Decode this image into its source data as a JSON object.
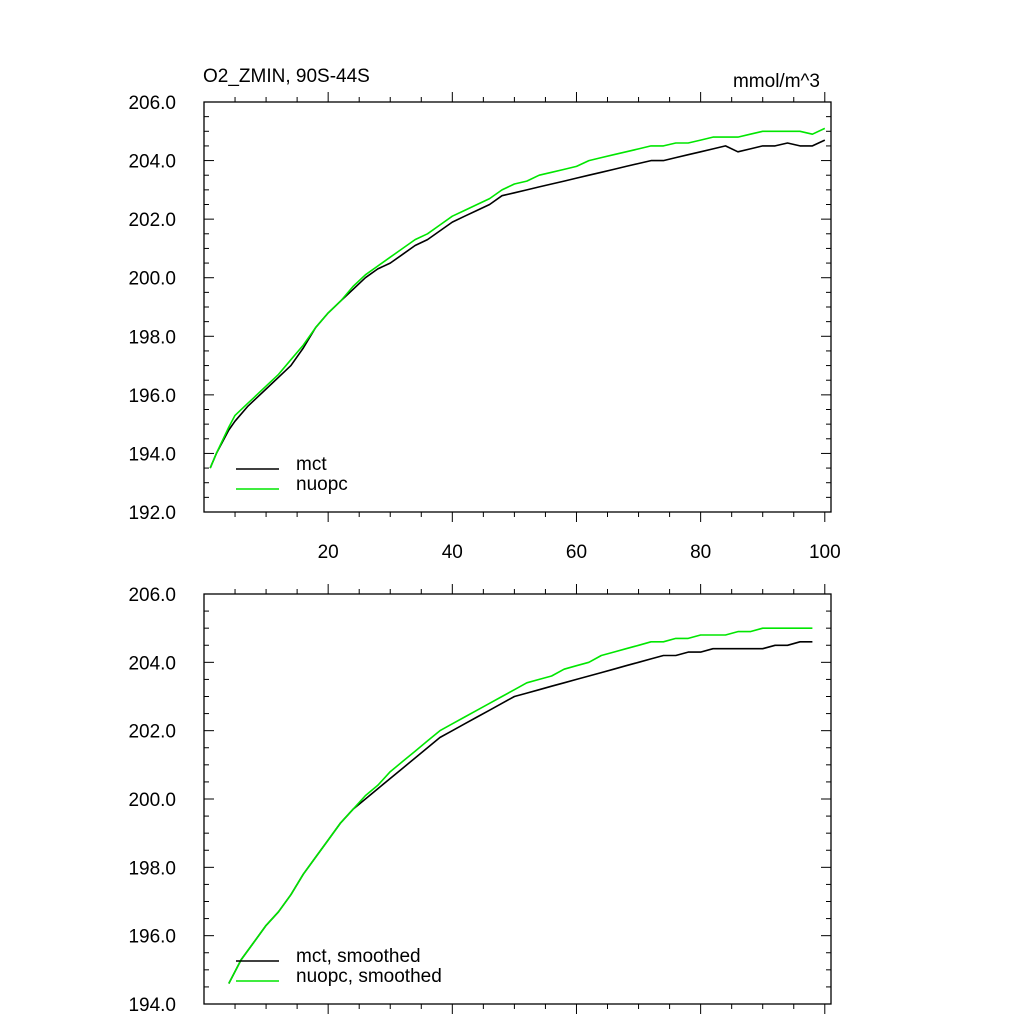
{
  "chart_data": [
    {
      "type": "line",
      "title": "O2_ZMIN, 90S-44S",
      "units": "mmol/m^3",
      "xlim": [
        0,
        101
      ],
      "ylim": [
        192,
        206
      ],
      "x_ticks": [
        20,
        40,
        60,
        80,
        100
      ],
      "y_ticks": [
        192.0,
        194.0,
        196.0,
        198.0,
        200.0,
        202.0,
        204.0,
        206.0
      ],
      "y_tick_labels": [
        "192.0",
        "194.0",
        "196.0",
        "198.0",
        "200.0",
        "202.0",
        "204.0",
        "206.0"
      ],
      "x_tick_labels": [
        "20",
        "40",
        "60",
        "80",
        "100"
      ],
      "legend_position": "bottom-left",
      "series": [
        {
          "name": "mct",
          "color": "#000000",
          "x": [
            1,
            2,
            4,
            5,
            7,
            8,
            10,
            12,
            14,
            16,
            18,
            20,
            22,
            24,
            26,
            28,
            30,
            32,
            34,
            36,
            38,
            40,
            42,
            44,
            46,
            48,
            50,
            52,
            54,
            56,
            58,
            60,
            62,
            64,
            66,
            68,
            70,
            72,
            74,
            76,
            78,
            80,
            82,
            84,
            86,
            88,
            90,
            92,
            94,
            96,
            98,
            100
          ],
          "y": [
            193.5,
            194.0,
            194.8,
            195.1,
            195.6,
            195.8,
            196.2,
            196.6,
            197.0,
            197.6,
            198.3,
            198.8,
            199.2,
            199.6,
            200.0,
            200.3,
            200.5,
            200.8,
            201.1,
            201.3,
            201.6,
            201.9,
            202.1,
            202.3,
            202.5,
            202.8,
            202.9,
            203.0,
            203.1,
            203.2,
            203.3,
            203.4,
            203.5,
            203.6,
            203.7,
            203.8,
            203.9,
            204.0,
            204.0,
            204.1,
            204.2,
            204.3,
            204.4,
            204.5,
            204.3,
            204.4,
            204.5,
            204.5,
            204.6,
            204.5,
            204.5,
            204.7
          ]
        },
        {
          "name": "nuopc",
          "color": "#00e600",
          "x": [
            1,
            2,
            4,
            5,
            7,
            8,
            10,
            12,
            14,
            16,
            18,
            20,
            22,
            24,
            26,
            28,
            30,
            32,
            34,
            36,
            38,
            40,
            42,
            44,
            46,
            48,
            50,
            52,
            54,
            56,
            58,
            60,
            62,
            64,
            66,
            68,
            70,
            72,
            74,
            76,
            78,
            80,
            82,
            84,
            86,
            88,
            90,
            92,
            94,
            96,
            98,
            100
          ],
          "y": [
            193.5,
            194.0,
            194.9,
            195.3,
            195.7,
            195.9,
            196.3,
            196.7,
            197.2,
            197.7,
            198.3,
            198.8,
            199.2,
            199.7,
            200.1,
            200.4,
            200.7,
            201.0,
            201.3,
            201.5,
            201.8,
            202.1,
            202.3,
            202.5,
            202.7,
            203.0,
            203.2,
            203.3,
            203.5,
            203.6,
            203.7,
            203.8,
            204.0,
            204.1,
            204.2,
            204.3,
            204.4,
            204.5,
            204.5,
            204.6,
            204.6,
            204.7,
            204.8,
            204.8,
            204.8,
            204.9,
            205.0,
            205.0,
            205.0,
            205.0,
            204.9,
            205.1
          ]
        }
      ]
    },
    {
      "type": "line",
      "xlim": [
        0,
        101
      ],
      "ylim": [
        194,
        206
      ],
      "x_ticks": [
        20,
        40,
        60,
        80,
        100
      ],
      "y_ticks": [
        194.0,
        196.0,
        198.0,
        200.0,
        202.0,
        204.0,
        206.0
      ],
      "y_tick_labels": [
        "194.0",
        "196.0",
        "198.0",
        "200.0",
        "202.0",
        "204.0",
        "206.0"
      ],
      "legend_position": "bottom-left",
      "series": [
        {
          "name": "mct, smoothed",
          "color": "#000000",
          "x": [
            4,
            6,
            8,
            10,
            12,
            14,
            16,
            18,
            20,
            22,
            24,
            26,
            28,
            30,
            32,
            34,
            36,
            38,
            40,
            42,
            44,
            46,
            48,
            50,
            52,
            54,
            56,
            58,
            60,
            62,
            64,
            66,
            68,
            70,
            72,
            74,
            76,
            78,
            80,
            82,
            84,
            86,
            88,
            90,
            92,
            94,
            96,
            98
          ],
          "y": [
            194.6,
            195.3,
            195.8,
            196.3,
            196.7,
            197.2,
            197.8,
            198.3,
            198.8,
            199.3,
            199.7,
            200.0,
            200.3,
            200.6,
            200.9,
            201.2,
            201.5,
            201.8,
            202.0,
            202.2,
            202.4,
            202.6,
            202.8,
            203.0,
            203.1,
            203.2,
            203.3,
            203.4,
            203.5,
            203.6,
            203.7,
            203.8,
            203.9,
            204.0,
            204.1,
            204.2,
            204.2,
            204.3,
            204.3,
            204.4,
            204.4,
            204.4,
            204.4,
            204.4,
            204.5,
            204.5,
            204.6,
            204.6
          ]
        },
        {
          "name": "nuopc, smoothed",
          "color": "#00e600",
          "x": [
            4,
            6,
            8,
            10,
            12,
            14,
            16,
            18,
            20,
            22,
            24,
            26,
            28,
            30,
            32,
            34,
            36,
            38,
            40,
            42,
            44,
            46,
            48,
            50,
            52,
            54,
            56,
            58,
            60,
            62,
            64,
            66,
            68,
            70,
            72,
            74,
            76,
            78,
            80,
            82,
            84,
            86,
            88,
            90,
            92,
            94,
            96,
            98
          ],
          "y": [
            194.6,
            195.3,
            195.8,
            196.3,
            196.7,
            197.2,
            197.8,
            198.3,
            198.8,
            199.3,
            199.7,
            200.1,
            200.4,
            200.8,
            201.1,
            201.4,
            201.7,
            202.0,
            202.2,
            202.4,
            202.6,
            202.8,
            203.0,
            203.2,
            203.4,
            203.5,
            203.6,
            203.8,
            203.9,
            204.0,
            204.2,
            204.3,
            204.4,
            204.5,
            204.6,
            204.6,
            204.7,
            204.7,
            204.8,
            204.8,
            204.8,
            204.9,
            204.9,
            205.0,
            205.0,
            205.0,
            205.0,
            205.0
          ]
        }
      ]
    }
  ]
}
